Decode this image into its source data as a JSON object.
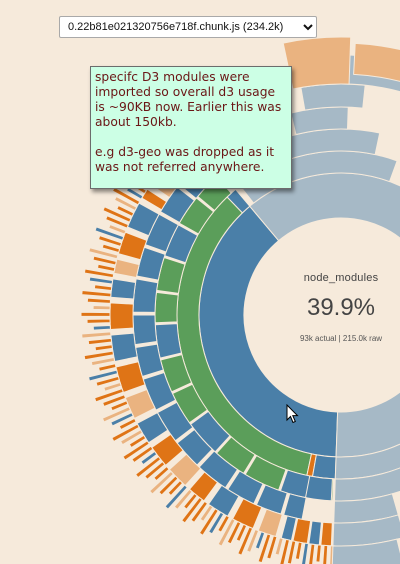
{
  "chunk_select": {
    "selected": "0.22b81e021320756e718f.chunk.js (234.2k)",
    "options": [
      "0.22b81e021320756e718f.chunk.js (234.2k)"
    ]
  },
  "center": {
    "name": "node_modules",
    "percent": "39.9%",
    "sizes": "93k actual | 215.0k raw"
  },
  "note": {
    "text": "specifc D3 modules were imported so overall d3 usage is ~90KB now. Earlier this was about 150kb.\n\ne.g d3-geo was dropped as it was not referred anywhere."
  },
  "colors": {
    "background": "#f6eadb",
    "highlight_blue": "#4a7fa8",
    "highlight_green": "#5b9e5a",
    "highlight_orange": "#df7416",
    "dim_blue": "#a6b9c6",
    "dim_orange": "#eab380",
    "note_bg": "#ccffe5",
    "note_text": "#6b1616"
  }
}
